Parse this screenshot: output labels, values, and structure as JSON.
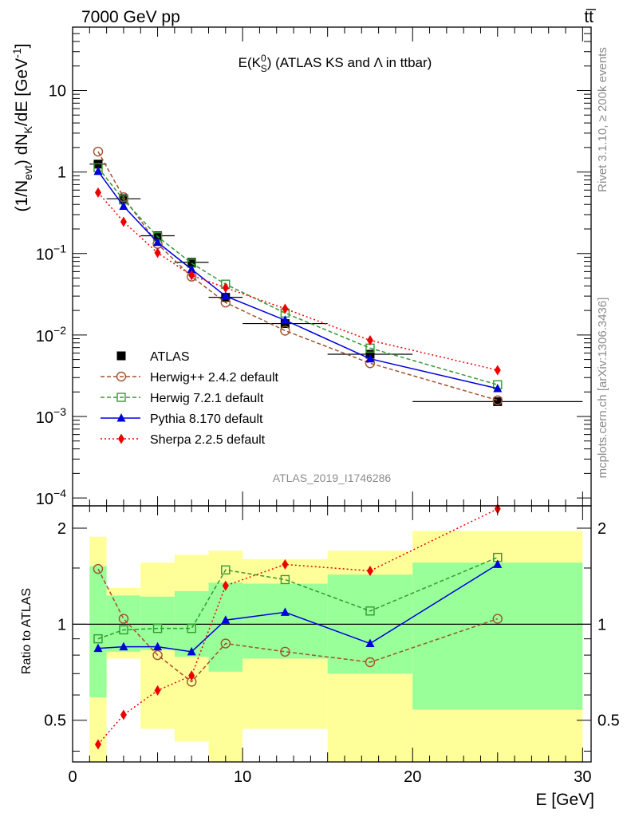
{
  "header": {
    "energy_label": "7000 GeV pp",
    "process_label": "tt̅"
  },
  "side_labels": {
    "rivet": "Rivet 3.1.10, ≥ 200k events",
    "mcplots": "mcplots.cern.ch [arXiv:1306.3436]"
  },
  "analysis_id": "ATLAS_2019_I1746286",
  "chart_data": [
    {
      "type": "line",
      "title": "E(K⁰_S) (ATLAS KS and Λ in ttbar)",
      "title_parts": {
        "main": "E(K",
        "sup": "0",
        "sub": "S",
        "rest": ") (ATLAS KS and Λ in ttbar)"
      },
      "ylabel": "(1/N_evt) dN_K/dE [GeV⁻¹]",
      "yscale": "log",
      "ylim": [
        8e-05,
        60
      ],
      "xlim": [
        0,
        30.5
      ],
      "y_tick_labels": [
        {
          "value": 10,
          "label": "10"
        },
        {
          "value": 1,
          "label": "1"
        },
        {
          "value": 0.1,
          "mant": "10",
          "exp": "−1"
        },
        {
          "value": 0.01,
          "mant": "10",
          "exp": "−2"
        },
        {
          "value": 0.001,
          "mant": "10",
          "exp": "−3"
        },
        {
          "value": 0.0001,
          "mant": "10",
          "exp": "−4"
        }
      ],
      "legend_position": "bottom-left",
      "x": [
        1.5,
        3,
        5,
        7,
        9,
        12.5,
        17.5,
        25
      ],
      "xerr": [
        0.5,
        1,
        1,
        1,
        1,
        2.5,
        2.5,
        5
      ],
      "series": [
        {
          "name": "ATLAS",
          "color": "#000000",
          "marker": "square-filled",
          "dash": "none",
          "values": [
            1.25,
            0.47,
            0.165,
            0.078,
            0.029,
            0.0138,
            0.0058,
            0.00152
          ]
        },
        {
          "name": "Herwig++ 2.4.2 default",
          "color": "#a0522d",
          "marker": "circle-open",
          "dash": "5,3",
          "values": [
            1.78,
            0.49,
            0.131,
            0.052,
            0.025,
            0.0113,
            0.0045,
            0.00158
          ]
        },
        {
          "name": "Herwig 7.2.1 default",
          "color": "#339933",
          "marker": "square-open",
          "dash": "5,3",
          "values": [
            1.13,
            0.455,
            0.161,
            0.076,
            0.042,
            0.0186,
            0.0069,
            0.00245
          ]
        },
        {
          "name": "Pythia 8.170 default",
          "color": "#0000dd",
          "marker": "triangle-filled",
          "dash": "none",
          "values": [
            1.02,
            0.38,
            0.137,
            0.064,
            0.03,
            0.0152,
            0.0051,
            0.0022
          ]
        },
        {
          "name": "Sherpa 2.2.5 default",
          "color": "#ee0000",
          "marker": "diamond-filled",
          "dash": "2,3",
          "values": [
            0.56,
            0.245,
            0.102,
            0.054,
            0.038,
            0.021,
            0.0086,
            0.0037
          ]
        }
      ]
    },
    {
      "type": "line",
      "ylabel": "Ratio to ATLAS",
      "xlabel": "E [GeV]",
      "yscale": "log",
      "ylim": [
        0.37,
        2.35
      ],
      "xlim": [
        0,
        30.5
      ],
      "x_ticks": [
        0,
        10,
        20,
        30
      ],
      "y_ticks": [
        0.5,
        1,
        2
      ],
      "reference_line": 1,
      "bands": [
        {
          "xlo": 1,
          "xhi": 2,
          "yellow": [
            0.37,
            1.88
          ],
          "green": [
            0.59,
            1.52
          ]
        },
        {
          "xlo": 2,
          "xhi": 4,
          "yellow": [
            0.78,
            1.3
          ],
          "green": [
            0.82,
            1.23
          ]
        },
        {
          "xlo": 4,
          "xhi": 6,
          "yellow": [
            0.47,
            1.56
          ],
          "green": [
            0.83,
            1.22
          ]
        },
        {
          "xlo": 6,
          "xhi": 8,
          "yellow": [
            0.43,
            1.65
          ],
          "green": [
            0.79,
            1.27
          ]
        },
        {
          "xlo": 8,
          "xhi": 10,
          "yellow": [
            0.37,
            1.7
          ],
          "green": [
            0.71,
            1.35
          ]
        },
        {
          "xlo": 10,
          "xhi": 15,
          "yellow": [
            0.47,
            1.6
          ],
          "green": [
            0.78,
            1.34
          ]
        },
        {
          "xlo": 15,
          "xhi": 20,
          "yellow": [
            0.37,
            1.7
          ],
          "green": [
            0.7,
            1.43
          ]
        },
        {
          "xlo": 20,
          "xhi": 30,
          "yellow": [
            0.37,
            1.96
          ],
          "green": [
            0.54,
            1.56
          ]
        }
      ],
      "series": [
        {
          "name": "Herwig++ 2.4.2 default",
          "color": "#a0522d",
          "marker": "circle-open",
          "dash": "5,3",
          "values": [
            1.49,
            1.04,
            0.8,
            0.66,
            0.87,
            0.82,
            0.76,
            1.04
          ]
        },
        {
          "name": "Herwig 7.2.1 default",
          "color": "#339933",
          "marker": "square-open",
          "dash": "5,3",
          "values": [
            0.9,
            0.96,
            0.97,
            0.97,
            1.48,
            1.38,
            1.1,
            1.62
          ]
        },
        {
          "name": "Pythia 8.170 default",
          "color": "#0000dd",
          "marker": "triangle-filled",
          "dash": "none",
          "values": [
            0.84,
            0.85,
            0.85,
            0.82,
            1.03,
            1.09,
            0.87,
            1.54
          ]
        },
        {
          "name": "Sherpa 2.2.5 default",
          "color": "#ee0000",
          "marker": "diamond-filled",
          "dash": "2,3",
          "values": [
            0.42,
            0.52,
            0.62,
            0.69,
            1.32,
            1.54,
            1.47,
            2.3
          ]
        }
      ]
    }
  ]
}
